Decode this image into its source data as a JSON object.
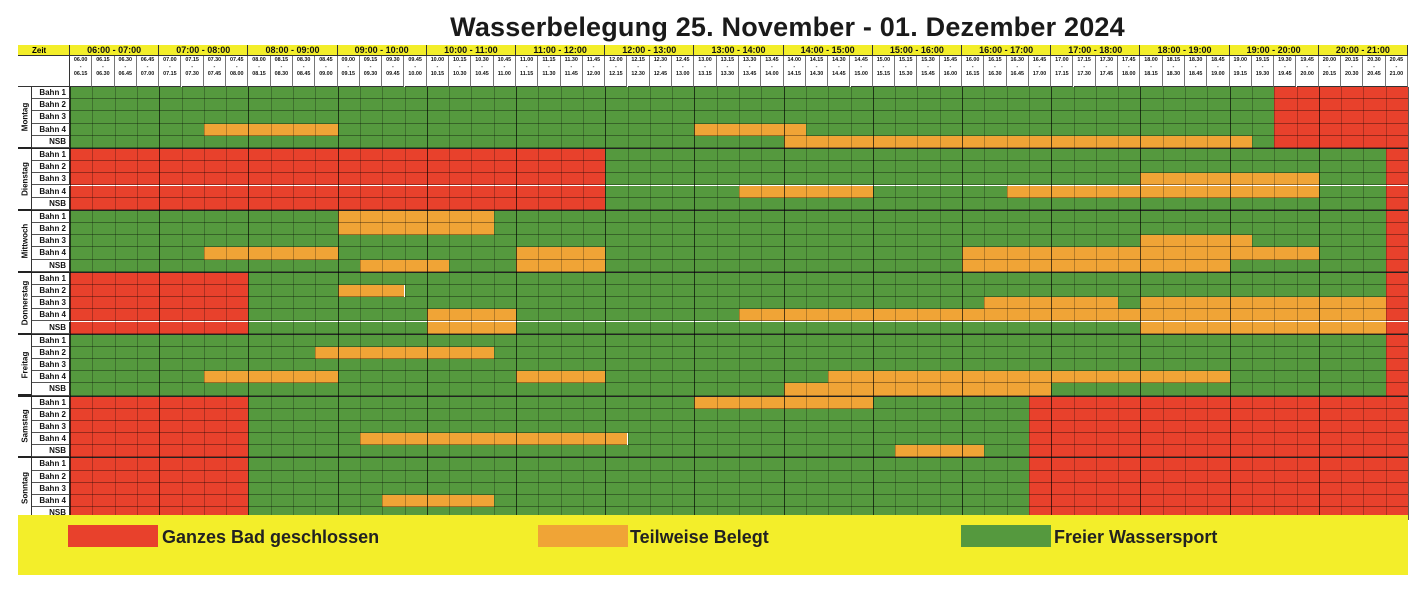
{
  "title": "Wasserbelegung 25. November - 01. Dezember 2024",
  "header": {
    "zeit_label": "Zeit",
    "hours": [
      "06:00 - 07:00",
      "07:00 - 08:00",
      "08:00 - 09:00",
      "09:00 - 10:00",
      "10:00 - 11:00",
      "11:00 - 12:00",
      "12:00 - 13:00",
      "13:00 - 14:00",
      "14:00 - 15:00",
      "15:00 - 16:00",
      "16:00 - 17:00",
      "17:00 - 18:00",
      "18:00 - 19:00",
      "19:00 - 20:00",
      "20:00 - 21:00"
    ],
    "slots": [
      [
        "06.00",
        "06.15"
      ],
      [
        "06.15",
        "06.30"
      ],
      [
        "06.30",
        "06.45"
      ],
      [
        "06.45",
        "07.00"
      ],
      [
        "07.00",
        "07.15"
      ],
      [
        "07.15",
        "07.30"
      ],
      [
        "07.30",
        "07.45"
      ],
      [
        "07.45",
        "08.00"
      ],
      [
        "08.00",
        "08.15"
      ],
      [
        "08.15",
        "08.30"
      ],
      [
        "08.30",
        "08.45"
      ],
      [
        "08.45",
        "09.00"
      ],
      [
        "09.00",
        "09.15"
      ],
      [
        "09.15",
        "09.30"
      ],
      [
        "09.30",
        "09.45"
      ],
      [
        "09.45",
        "10.00"
      ],
      [
        "10.00",
        "10.15"
      ],
      [
        "10.15",
        "10.30"
      ],
      [
        "10.30",
        "10.45"
      ],
      [
        "10.45",
        "11.00"
      ],
      [
        "11.00",
        "11.15"
      ],
      [
        "11.15",
        "11.30"
      ],
      [
        "11.30",
        "11.45"
      ],
      [
        "11.45",
        "12.00"
      ],
      [
        "12.00",
        "12.15"
      ],
      [
        "12.15",
        "12.30"
      ],
      [
        "12.30",
        "12.45"
      ],
      [
        "12.45",
        "13.00"
      ],
      [
        "13.00",
        "13.15"
      ],
      [
        "13.15",
        "13.30"
      ],
      [
        "13.30",
        "13.45"
      ],
      [
        "13.45",
        "14.00"
      ],
      [
        "14.00",
        "14.15"
      ],
      [
        "14.15",
        "14.30"
      ],
      [
        "14.30",
        "14.45"
      ],
      [
        "14.45",
        "15.00"
      ],
      [
        "15.00",
        "15.15"
      ],
      [
        "15.15",
        "15.30"
      ],
      [
        "15.30",
        "15.45"
      ],
      [
        "15.45",
        "16.00"
      ],
      [
        "16.00",
        "16.15"
      ],
      [
        "16.15",
        "16.30"
      ],
      [
        "16.30",
        "16.45"
      ],
      [
        "16.45",
        "17.00"
      ],
      [
        "17.00",
        "17.15"
      ],
      [
        "17.15",
        "17.30"
      ],
      [
        "17.30",
        "17.45"
      ],
      [
        "17.45",
        "18.00"
      ],
      [
        "18.00",
        "18.15"
      ],
      [
        "18.15",
        "18.30"
      ],
      [
        "18.30",
        "18.45"
      ],
      [
        "18.45",
        "19.00"
      ],
      [
        "19.00",
        "19.15"
      ],
      [
        "19.15",
        "19.30"
      ],
      [
        "19.30",
        "19.45"
      ],
      [
        "19.45",
        "20.00"
      ],
      [
        "20.00",
        "20.15"
      ],
      [
        "20.15",
        "20.30"
      ],
      [
        "20.30",
        "20.45"
      ],
      [
        "20.45",
        "21.00"
      ]
    ]
  },
  "colors": {
    "closed": "#e8412c",
    "partial": "#f0a436",
    "free": "#55993e",
    "yellow": "#f3ee2a"
  },
  "lanes": [
    "Bahn 1",
    "Bahn 2",
    "Bahn 3",
    "Bahn 4",
    "NSB"
  ],
  "days": [
    {
      "name": "Montag",
      "lanes": [
        [
          [
            "free",
            0,
            54
          ],
          [
            "closed",
            54,
            60
          ]
        ],
        [
          [
            "free",
            0,
            54
          ],
          [
            "closed",
            54,
            60
          ]
        ],
        [
          [
            "free",
            0,
            54
          ],
          [
            "closed",
            54,
            60
          ]
        ],
        [
          [
            "free",
            0,
            6
          ],
          [
            "partial",
            6,
            12
          ],
          [
            "free",
            12,
            28
          ],
          [
            "partial",
            28,
            33
          ],
          [
            "free",
            33,
            54
          ],
          [
            "closed",
            54,
            60
          ]
        ],
        [
          [
            "free",
            0,
            32
          ],
          [
            "partial",
            32,
            53
          ],
          [
            "free",
            53,
            54
          ],
          [
            "closed",
            54,
            60
          ]
        ]
      ]
    },
    {
      "name": "Dienstag",
      "lanes": [
        [
          [
            "closed",
            0,
            24
          ],
          [
            "free",
            24,
            59
          ],
          [
            "closed",
            59,
            60
          ]
        ],
        [
          [
            "closed",
            0,
            24
          ],
          [
            "free",
            24,
            59
          ],
          [
            "closed",
            59,
            60
          ]
        ],
        [
          [
            "closed",
            0,
            24
          ],
          [
            "free",
            24,
            48
          ],
          [
            "partial",
            48,
            56
          ],
          [
            "free",
            56,
            59
          ],
          [
            "closed",
            59,
            60
          ]
        ],
        [
          [
            "closed",
            0,
            24
          ],
          [
            "free",
            24,
            30
          ],
          [
            "partial",
            30,
            36
          ],
          [
            "free",
            36,
            42
          ],
          [
            "partial",
            42,
            56
          ],
          [
            "free",
            56,
            59
          ],
          [
            "closed",
            59,
            60
          ]
        ],
        [
          [
            "closed",
            0,
            24
          ],
          [
            "free",
            24,
            59
          ],
          [
            "closed",
            59,
            60
          ]
        ]
      ]
    },
    {
      "name": "Mittwoch",
      "lanes": [
        [
          [
            "free",
            0,
            12
          ],
          [
            "partial",
            12,
            19
          ],
          [
            "free",
            19,
            59
          ],
          [
            "closed",
            59,
            60
          ]
        ],
        [
          [
            "free",
            0,
            12
          ],
          [
            "partial",
            12,
            19
          ],
          [
            "free",
            19,
            59
          ],
          [
            "closed",
            59,
            60
          ]
        ],
        [
          [
            "free",
            0,
            48
          ],
          [
            "partial",
            48,
            53
          ],
          [
            "free",
            53,
            59
          ],
          [
            "closed",
            59,
            60
          ]
        ],
        [
          [
            "free",
            0,
            6
          ],
          [
            "partial",
            6,
            12
          ],
          [
            "free",
            12,
            20
          ],
          [
            "partial",
            20,
            24
          ],
          [
            "free",
            24,
            40
          ],
          [
            "partial",
            40,
            56
          ],
          [
            "free",
            56,
            59
          ],
          [
            "closed",
            59,
            60
          ]
        ],
        [
          [
            "free",
            0,
            13
          ],
          [
            "partial",
            13,
            17
          ],
          [
            "free",
            17,
            20
          ],
          [
            "partial",
            20,
            24
          ],
          [
            "free",
            24,
            40
          ],
          [
            "partial",
            40,
            52
          ],
          [
            "free",
            52,
            59
          ],
          [
            "closed",
            59,
            60
          ]
        ]
      ]
    },
    {
      "name": "Donnerstag",
      "lanes": [
        [
          [
            "closed",
            0,
            8
          ],
          [
            "free",
            8,
            59
          ],
          [
            "closed",
            59,
            60
          ]
        ],
        [
          [
            "closed",
            0,
            8
          ],
          [
            "free",
            8,
            12
          ],
          [
            "partial",
            12,
            15
          ],
          [
            "free",
            15,
            59
          ],
          [
            "closed",
            59,
            60
          ]
        ],
        [
          [
            "closed",
            0,
            8
          ],
          [
            "free",
            8,
            41
          ],
          [
            "partial",
            41,
            47
          ],
          [
            "free",
            47,
            48
          ],
          [
            "partial",
            48,
            59
          ],
          [
            "closed",
            59,
            60
          ]
        ],
        [
          [
            "closed",
            0,
            8
          ],
          [
            "free",
            8,
            16
          ],
          [
            "partial",
            16,
            20
          ],
          [
            "free",
            20,
            30
          ],
          [
            "partial",
            30,
            59
          ],
          [
            "closed",
            59,
            60
          ]
        ],
        [
          [
            "closed",
            0,
            8
          ],
          [
            "free",
            8,
            16
          ],
          [
            "partial",
            16,
            20
          ],
          [
            "free",
            20,
            48
          ],
          [
            "partial",
            48,
            59
          ],
          [
            "closed",
            59,
            60
          ]
        ]
      ]
    },
    {
      "name": "Freitag",
      "lanes": [
        [
          [
            "free",
            0,
            59
          ],
          [
            "closed",
            59,
            60
          ]
        ],
        [
          [
            "free",
            0,
            11
          ],
          [
            "partial",
            11,
            19
          ],
          [
            "free",
            19,
            59
          ],
          [
            "closed",
            59,
            60
          ]
        ],
        [
          [
            "free",
            0,
            59
          ],
          [
            "closed",
            59,
            60
          ]
        ],
        [
          [
            "free",
            0,
            6
          ],
          [
            "partial",
            6,
            12
          ],
          [
            "free",
            12,
            20
          ],
          [
            "partial",
            20,
            24
          ],
          [
            "free",
            24,
            34
          ],
          [
            "partial",
            34,
            52
          ],
          [
            "free",
            52,
            59
          ],
          [
            "closed",
            59,
            60
          ]
        ],
        [
          [
            "free",
            0,
            32
          ],
          [
            "partial",
            32,
            44
          ],
          [
            "free",
            44,
            59
          ],
          [
            "closed",
            59,
            60
          ]
        ]
      ]
    },
    {
      "name": "Samstag",
      "lanes": [
        [
          [
            "closed",
            0,
            8
          ],
          [
            "free",
            8,
            28
          ],
          [
            "partial",
            28,
            36
          ],
          [
            "free",
            36,
            43
          ],
          [
            "closed",
            43,
            60
          ]
        ],
        [
          [
            "closed",
            0,
            8
          ],
          [
            "free",
            8,
            43
          ],
          [
            "closed",
            43,
            60
          ]
        ],
        [
          [
            "closed",
            0,
            8
          ],
          [
            "free",
            8,
            43
          ],
          [
            "closed",
            43,
            60
          ]
        ],
        [
          [
            "closed",
            0,
            8
          ],
          [
            "free",
            8,
            13
          ],
          [
            "partial",
            13,
            25
          ],
          [
            "free",
            25,
            43
          ],
          [
            "closed",
            43,
            60
          ]
        ],
        [
          [
            "closed",
            0,
            8
          ],
          [
            "free",
            8,
            37
          ],
          [
            "partial",
            37,
            41
          ],
          [
            "free",
            41,
            43
          ],
          [
            "closed",
            43,
            60
          ]
        ]
      ]
    },
    {
      "name": "Sonntag",
      "lanes": [
        [
          [
            "closed",
            0,
            8
          ],
          [
            "free",
            8,
            43
          ],
          [
            "closed",
            43,
            60
          ]
        ],
        [
          [
            "closed",
            0,
            8
          ],
          [
            "free",
            8,
            43
          ],
          [
            "closed",
            43,
            60
          ]
        ],
        [
          [
            "closed",
            0,
            8
          ],
          [
            "free",
            8,
            43
          ],
          [
            "closed",
            43,
            60
          ]
        ],
        [
          [
            "closed",
            0,
            8
          ],
          [
            "free",
            8,
            14
          ],
          [
            "partial",
            14,
            19
          ],
          [
            "free",
            19,
            43
          ],
          [
            "closed",
            43,
            60
          ]
        ],
        [
          [
            "closed",
            0,
            8
          ],
          [
            "free",
            8,
            43
          ],
          [
            "closed",
            43,
            60
          ]
        ]
      ]
    }
  ],
  "legend": [
    {
      "label": "Ganzes Bad geschlossen",
      "status": "closed"
    },
    {
      "label": "Teilweise Belegt",
      "status": "partial"
    },
    {
      "label": "Freier Wassersport",
      "status": "free"
    }
  ]
}
